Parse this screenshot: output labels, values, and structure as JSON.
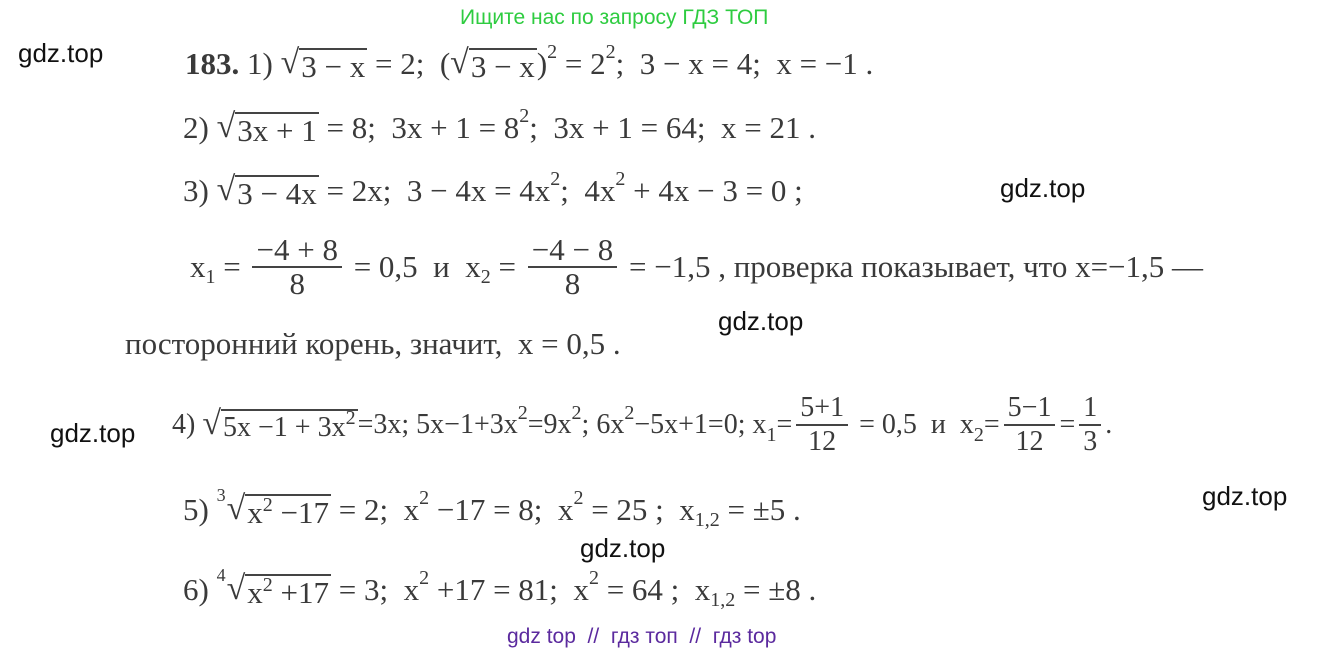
{
  "watermarks": {
    "top": "Ищите нас по запросу ГДЗ ТОП",
    "site": "gdz.top",
    "bottom": "gdz top  //  гдз топ  //  гдз top",
    "top_color": "#2ecc40",
    "bottom_color": "#5b2a9e"
  },
  "l1": {
    "num": "183.",
    "label": " 1) ",
    "r1": "3 − x",
    "t1": " = 2;  (",
    "r2": "3 − x",
    "t2": ")",
    "s1": "2",
    "t3": " = 2",
    "s2": "2",
    "t4": ";  3 − x = 4;  x = −1 ."
  },
  "l2": {
    "label": "2) ",
    "r1": "3x + 1",
    "t1": " = 8;  3x + 1 = 8",
    "s1": "2",
    "t2": ";  3x + 1 = 64;  x = 21 ."
  },
  "l3": {
    "label": "3) ",
    "r1": "3 − 4x",
    "t1": " = 2x;  3 − 4x = 4x",
    "s1": "2",
    "t2": ";  4x",
    "s2": "2",
    "t3": " + 4x − 3 = 0 ;"
  },
  "l4": {
    "x": "x",
    "i1": "1",
    "eq": " = ",
    "n1": "−4 + 8",
    "d1": "8",
    "t1": " = 0,5  и  ",
    "i2": "2",
    "n2": "−4 − 8",
    "d2": "8",
    "t2": " = −1,5 , проверка показывает, что x=−1,5 —"
  },
  "l5": {
    "text": "посторонний корень, значит,  x = 0,5 ."
  },
  "l6": {
    "label": "4) ",
    "r1": "5x −1 + 3x",
    "rs": "2",
    "t1": "=3x; 5x−1+3x",
    "s1": "2",
    "t2": "=9x",
    "s2": "2",
    "t3": "; 6x",
    "s3": "2",
    "t4": "−5x+1=0; x",
    "i1": "1",
    "eq": "=",
    "n1": "5+1",
    "d1": "12",
    "t5": " = 0,5  и  x",
    "i2": "2",
    "n2": "5−1",
    "d2": "12",
    "t6": "=",
    "n3": "1",
    "d3": "3",
    "t7": "."
  },
  "l7": {
    "label": "5) ",
    "idx": "3",
    "r1": "x",
    "rs": "2",
    "r2": " −17",
    "t1": " = 2;  x",
    "s1": "2",
    "t2": " −17 = 8;  x",
    "s2": "2",
    "t3": " = 25 ;  x",
    "i1": "1,2",
    "t4": " = ±5 ."
  },
  "l8": {
    "label": "6) ",
    "idx": "4",
    "r1": "x",
    "rs": "2",
    "r2": " +17",
    "t1": " = 3;  x",
    "s1": "2",
    "t2": " +17 = 81;  x",
    "s2": "2",
    "t3": " = 64 ;  x",
    "i1": "1,2",
    "t4": " = ±8 ."
  }
}
